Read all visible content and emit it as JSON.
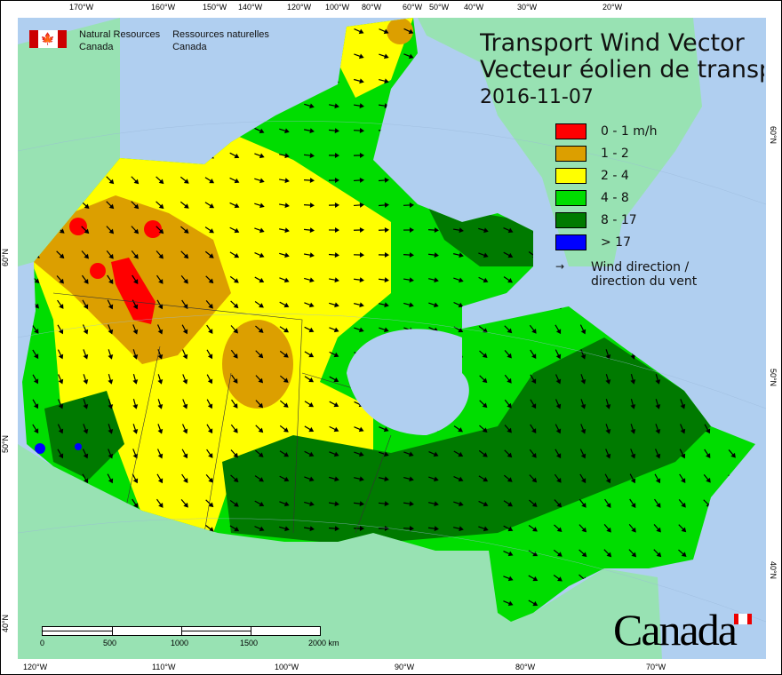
{
  "header": {
    "org_en": [
      "Natural Resources",
      "Canada"
    ],
    "org_fr": [
      "Ressources naturelles",
      "Canada"
    ]
  },
  "title": {
    "line1": "Transport Wind Vector",
    "line2": "Vecteur éolien de transport",
    "date": "2016-11-07"
  },
  "legend": {
    "items": [
      {
        "label": "0 - 1 m/h",
        "color": "#ff0000"
      },
      {
        "label": "1 - 2",
        "color": "#dc9f00"
      },
      {
        "label": "2 - 4",
        "color": "#ffff00"
      },
      {
        "label": "4 - 8",
        "color": "#00dd00"
      },
      {
        "label": "8 - 17",
        "color": "#007a00"
      },
      {
        "label": "> 17",
        "color": "#0000ff"
      }
    ],
    "wind_label_1": "Wind direction /",
    "wind_label_2": "direction du vent"
  },
  "axes": {
    "top": [
      "170°W",
      "160°W",
      "150°W",
      "140°W",
      "120°W",
      "100°W",
      "80°W",
      "60°W",
      "50°W",
      "40°W",
      "30°W",
      "20°W"
    ],
    "bottom": [
      "120°W",
      "110°W",
      "100°W",
      "90°W",
      "80°W",
      "70°W"
    ],
    "left": [
      "60°N",
      "50°N",
      "40°N"
    ],
    "right": [
      "60°N",
      "50°N",
      "40°N"
    ]
  },
  "scale_bar": {
    "labels": [
      "0",
      "500",
      "1000",
      "1500",
      "2000 km"
    ]
  },
  "wordmark": "Canada",
  "colors": {
    "ocean": "#b0cff0",
    "land": "#98e2b3"
  }
}
